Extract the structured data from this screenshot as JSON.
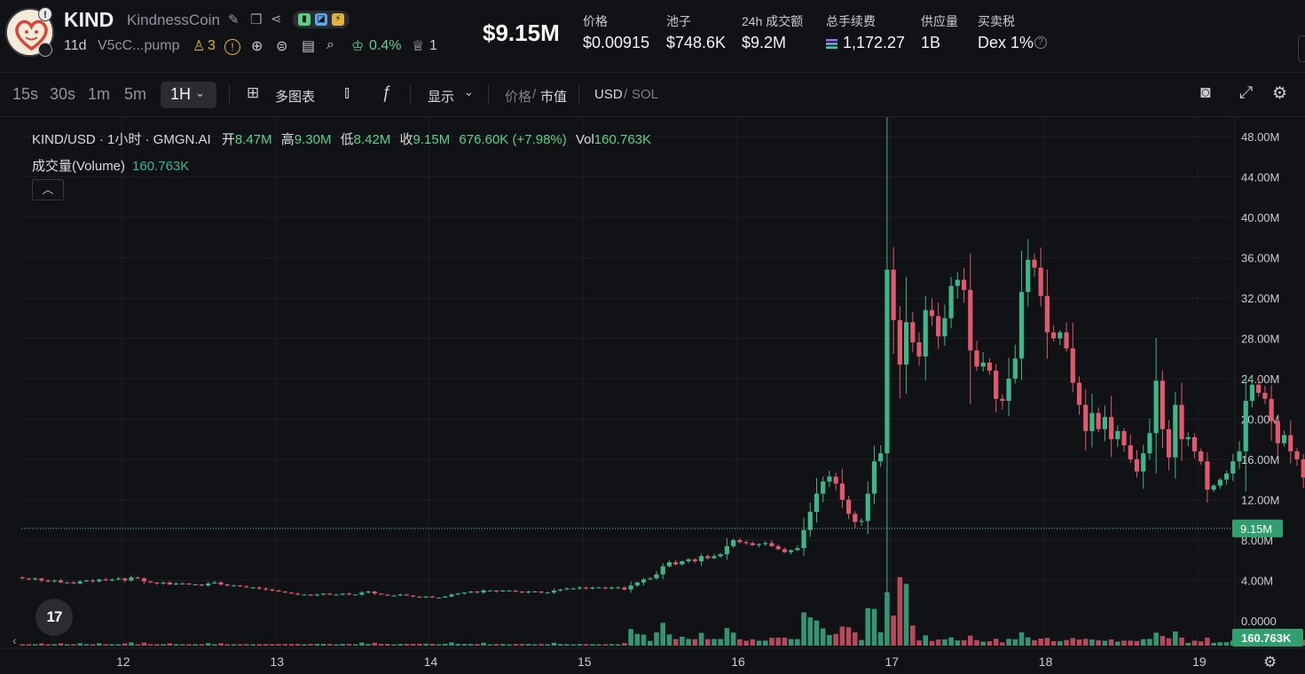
{
  "header": {
    "symbol": "KIND",
    "name": "KindnessCoin",
    "avatar_badge": "!",
    "age": "11d",
    "address": "V5cC...pump",
    "holders_count": "3",
    "top10_pct": "0.4%",
    "dev_count": "1",
    "market_cap": "$9.15M",
    "stats": [
      {
        "label": "价格",
        "value": "$0.00915"
      },
      {
        "label": "池子",
        "value": "$748.6K"
      },
      {
        "label": "24h 成交额",
        "value": "$9.2M"
      },
      {
        "label": "总手续费",
        "value": "1,172.27"
      },
      {
        "label": "供应量",
        "value": "1B"
      },
      {
        "label": "买卖税",
        "value": "Dex 1%"
      }
    ],
    "tax_help": "?"
  },
  "toolbar": {
    "timeframes": [
      "15s",
      "30s",
      "1m",
      "5m",
      "1H"
    ],
    "active_timeframe": "1H",
    "multi_chart": "多图表",
    "display": "显示",
    "price_label": "价格",
    "mcap_label": "市值",
    "usd": "USD",
    "sol": "SOL",
    "separator": "/"
  },
  "colors": {
    "up": "#3fb58a",
    "down": "#e0596d",
    "background": "#111215",
    "grid": "#1c1e23",
    "axis_text": "#c9ccd3"
  },
  "chart_data": {
    "type": "candlestick",
    "title": "KIND/USD · 1小时 · GMGN.AI",
    "ohlc_label": {
      "open_key": "开",
      "open": "8.47M",
      "high_key": "高",
      "high": "9.30M",
      "low_key": "低",
      "low": "8.42M",
      "close_key": "收",
      "close": "9.15M",
      "change": "676.60K (+7.98%)",
      "vol_key": "Vol",
      "vol": "160.763K"
    },
    "volume_legend": {
      "label": "成交量(Volume)",
      "value": "160.763K"
    },
    "y_ticks": [
      "48.00M",
      "44.00M",
      "40.00M",
      "36.00M",
      "32.00M",
      "28.00M",
      "24.00M",
      "20.00M",
      "16.00M",
      "12.00M",
      "8.00M",
      "4.00M",
      "0.0000"
    ],
    "y_tick_values": [
      48,
      44,
      40,
      36,
      32,
      28,
      24,
      20,
      16,
      12,
      8,
      4,
      0
    ],
    "ylim": [
      0,
      50
    ],
    "x_ticks": [
      "12",
      "13",
      "14",
      "15",
      "16",
      "17",
      "18",
      "19"
    ],
    "x_tick_hours": [
      16.5,
      40.5,
      64.5,
      88.5,
      112.5,
      136.5,
      160.5,
      184.5
    ],
    "current_price_label": "9.15M",
    "current_volume_label": "160.763K",
    "closes": [
      4.3,
      4.2,
      4.1,
      4.2,
      4.0,
      3.9,
      4.0,
      3.8,
      3.8,
      3.7,
      3.9,
      4.0,
      3.9,
      4.1,
      4.0,
      4.1,
      4.2,
      4.0,
      4.3,
      4.2,
      3.9,
      3.8,
      3.7,
      3.8,
      3.6,
      3.7,
      3.7,
      3.6,
      3.6,
      3.5,
      3.7,
      3.8,
      3.6,
      3.5,
      3.5,
      3.4,
      3.3,
      3.3,
      3.2,
      3.1,
      3.0,
      2.9,
      2.8,
      2.7,
      2.6,
      2.6,
      2.5,
      2.6,
      2.7,
      2.6,
      2.6,
      2.7,
      2.6,
      2.6,
      2.8,
      2.9,
      2.7,
      2.6,
      2.5,
      2.5,
      2.6,
      2.5,
      2.4,
      2.3,
      2.4,
      2.3,
      2.3,
      2.4,
      2.6,
      2.7,
      2.8,
      2.9,
      2.8,
      3.0,
      3.0,
      2.9,
      3.0,
      3.0,
      2.9,
      2.8,
      2.9,
      2.9,
      2.8,
      2.8,
      3.0,
      3.1,
      3.2,
      3.2,
      3.3,
      3.2,
      3.3,
      3.3,
      3.2,
      3.3,
      3.3,
      3.1,
      3.5,
      3.8,
      4.1,
      4.2,
      4.6,
      5.4,
      5.8,
      5.6,
      5.9,
      6.1,
      5.9,
      6.4,
      6.2,
      6.4,
      6.6,
      7.4,
      8.0,
      7.8,
      7.7,
      7.5,
      7.6,
      7.7,
      7.4,
      7.1,
      6.8,
      7.0,
      7.2,
      9.0,
      10.8,
      12.6,
      13.8,
      14.3,
      13.6,
      12.0,
      10.6,
      9.8,
      9.9,
      12.6,
      15.8,
      16.6,
      34.8,
      29.8,
      25.4,
      29.6,
      27.6,
      26.2,
      30.8,
      30.2,
      28.2,
      30.0,
      33.2,
      33.8,
      32.8,
      26.8,
      25.2,
      25.6,
      24.8,
      22.0,
      21.8,
      24.0,
      26.0,
      32.6,
      35.8,
      35.0,
      32.2,
      28.6,
      28.0,
      28.6,
      27.0,
      23.6,
      21.4,
      18.8,
      20.6,
      19.0,
      20.2,
      18.0,
      18.8,
      17.4,
      16.0,
      14.8,
      16.6,
      18.6,
      23.8,
      19.0,
      16.2,
      21.4,
      18.0,
      18.2,
      16.8,
      15.8,
      13.0,
      13.4,
      14.0,
      14.6,
      15.8,
      16.8,
      21.8,
      23.4,
      22.6,
      22.0,
      19.8,
      17.6,
      18.4,
      16.8,
      16.0,
      14.2,
      17.4,
      17.6,
      17.0,
      16.0,
      16.6,
      15.8,
      13.8,
      11.0,
      9.6,
      10.6,
      9.2,
      8.8,
      9.4,
      8.5,
      8.6,
      8.5,
      8.47,
      9.15
    ],
    "volume_note": "relative bars, max visible near 15th-16th session"
  }
}
